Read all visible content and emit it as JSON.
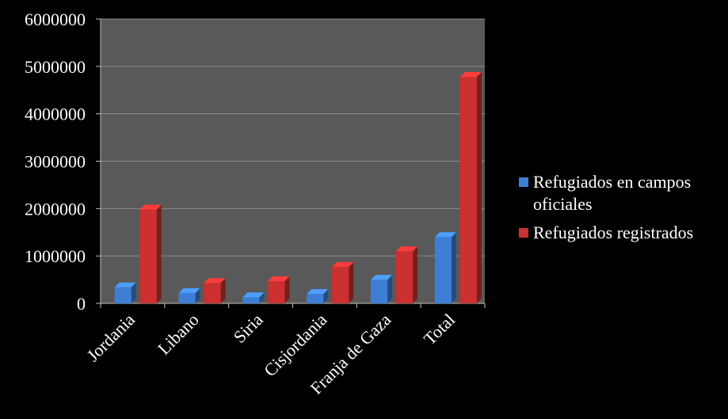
{
  "chart_data": {
    "type": "bar",
    "categories": [
      "Jordania",
      "Libano",
      "Siria",
      "Cisjordania",
      "Franja de Gaza",
      "Total"
    ],
    "series": [
      {
        "name": "Refugiados en campos oficiales",
        "values": [
          340000,
          220000,
          130000,
          200000,
          500000,
          1400000
        ],
        "color": "#3d7fd6"
      },
      {
        "name": "Refugiados registrados",
        "values": [
          1980000,
          430000,
          470000,
          770000,
          1100000,
          4780000
        ],
        "color": "#cc3030"
      }
    ],
    "y_ticks": [
      "0",
      "1000000",
      "2000000",
      "3000000",
      "4000000",
      "5000000",
      "6000000"
    ],
    "ylim": [
      0,
      6000000
    ],
    "grid": true,
    "legend_position": "right",
    "plot_background": "#595959",
    "page_background": "#000000",
    "title": "",
    "xlabel": "",
    "ylabel": ""
  },
  "legend": {
    "items": [
      {
        "label": "Refugiados en campos oficiales",
        "color": "#3d7fd6"
      },
      {
        "label": "Refugiados registrados",
        "color": "#cc3030"
      }
    ]
  }
}
